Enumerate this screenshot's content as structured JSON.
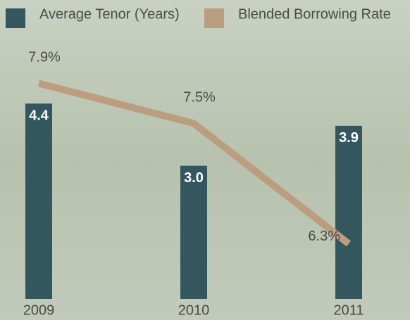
{
  "chart_data": {
    "type": "bar-line",
    "categories": [
      "2009",
      "2010",
      "2011"
    ],
    "series": [
      {
        "name": "Average Tenor (Years)",
        "type": "bar",
        "color": "#34565f",
        "values": [
          4.4,
          3.0,
          3.9
        ],
        "value_labels": [
          "4.4",
          "3.0",
          "3.9"
        ]
      },
      {
        "name": "Blended Borrowing Rate",
        "type": "line",
        "axis": "y2",
        "color": "#bb9d80",
        "values": [
          7.9,
          7.5,
          6.3
        ],
        "value_labels": [
          "7.9%",
          "7.5%",
          "6.3%"
        ]
      }
    ],
    "ylim": [
      0,
      6.1
    ],
    "y2lim": [
      5.75,
      8.45
    ]
  }
}
